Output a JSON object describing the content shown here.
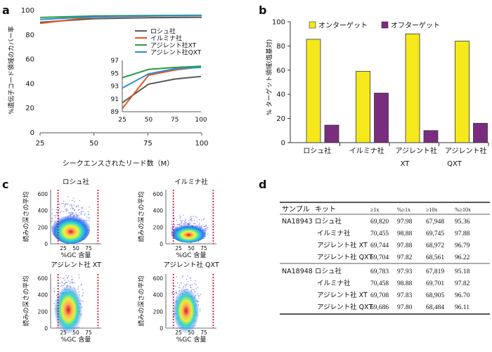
{
  "panels": {
    "a": "a",
    "b": "b",
    "c": "c",
    "d": "d"
  },
  "chart_data": [
    {
      "panel": "a",
      "type": "line",
      "ylabel": "%遺伝子コード領域のカバー率",
      "xlabel": "シークエンスされたリード数（M）",
      "x": [
        25,
        50,
        75,
        100
      ],
      "xlim": [
        25,
        100
      ],
      "ylim": [
        0,
        100
      ],
      "yticks": [
        0,
        20,
        40,
        60,
        80,
        100
      ],
      "series": [
        {
          "name": "ロシュ社",
          "color": "#595959",
          "values": [
            90.4,
            93.3,
            94.1,
            94.5
          ]
        },
        {
          "name": "イルミナ社",
          "color": "#e0561f",
          "values": [
            89.5,
            94.7,
            95.5,
            96.0
          ]
        },
        {
          "name": "アジレント社XT",
          "color": "#2e9a44",
          "values": [
            94.3,
            95.6,
            95.9,
            96.1
          ]
        },
        {
          "name": "アジレント社QXT",
          "color": "#2d8fd5",
          "values": [
            92.7,
            94.9,
            95.7,
            95.9
          ]
        }
      ],
      "inset": {
        "ylim": [
          89,
          97
        ],
        "yticks": [
          89,
          91,
          93,
          95,
          97
        ],
        "x": [
          25,
          50,
          75,
          100
        ]
      }
    },
    {
      "panel": "b",
      "type": "bar",
      "ylabel": "% ターゲット領域(塩基対)",
      "ylim": [
        0,
        100
      ],
      "yticks": [
        0,
        20,
        40,
        60,
        80,
        100
      ],
      "categories": [
        "ロシュ社",
        "イルミナ社",
        "アジレント社 XT",
        "アジレント社 QXT"
      ],
      "series": [
        {
          "name": "オンターゲット",
          "color": "#f5e81b",
          "values": [
            85.5,
            59,
            90,
            84
          ]
        },
        {
          "name": "オフターゲット",
          "color": "#7a2d7e",
          "values": [
            14.5,
            41,
            10,
            16
          ]
        }
      ]
    }
  ],
  "panel_c": {
    "ylabel": "読みの深さの平均",
    "xlabel": "%GC 含量",
    "xticks": [
      25,
      50,
      75
    ],
    "yticks": [
      0,
      200,
      400,
      600
    ],
    "plots": [
      {
        "title": "ロシュ社"
      },
      {
        "title": "イルミナ社"
      },
      {
        "title": "アジレント社 XT"
      },
      {
        "title": "アジレント社 QXT"
      }
    ]
  },
  "table": {
    "headers": [
      "サンプル",
      "キット",
      "≥1x",
      "%≥1x",
      "≥10x",
      "%≥10x"
    ],
    "groups": [
      {
        "sample": "NA18943",
        "rows": [
          [
            "ロシュ社",
            "69,820",
            "97.98",
            "67,948",
            "95.36"
          ],
          [
            "イルミナ社",
            "70,455",
            "98.88",
            "69,745",
            "97.88"
          ],
          [
            "アジレント社 XT",
            "69,744",
            "97.88",
            "68,972",
            "96.79"
          ],
          [
            "アジレント社 QXT",
            "69,704",
            "97.82",
            "68,561",
            "96.22"
          ]
        ]
      },
      {
        "sample": "NA18948",
        "rows": [
          [
            "ロシュ社",
            "69,783",
            "97.93",
            "67,819",
            "95.18"
          ],
          [
            "イルミナ社",
            "70,458",
            "98.88",
            "69,701",
            "97.82"
          ],
          [
            "アジレント社 XT",
            "69,708",
            "97.83",
            "68,905",
            "96.70"
          ],
          [
            "アジレント社 QXT",
            "69,686",
            "97.80",
            "68,484",
            "96.11"
          ]
        ]
      }
    ]
  }
}
